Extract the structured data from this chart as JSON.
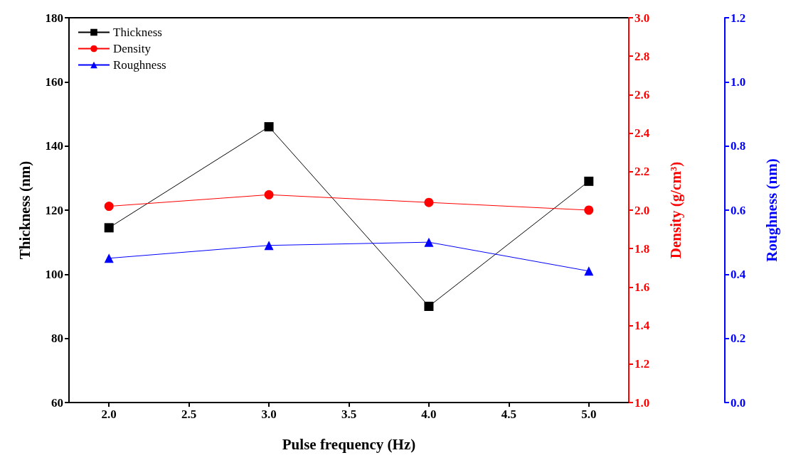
{
  "chart_data": {
    "type": "line",
    "xlabel": "Pulse frequency (Hz)",
    "ylabel": "Thickness (nm)",
    "y2label": "Density (g/cm³)",
    "y3label": "Roughness (nm)",
    "x": [
      2,
      3,
      4,
      5
    ],
    "series": [
      {
        "name": "Thickness",
        "color": "#000000",
        "marker": "square",
        "values": [
          114.5,
          146,
          90,
          129
        ]
      },
      {
        "name": "Density",
        "color": "#ff0000",
        "marker": "circle",
        "axis": "y2",
        "values": [
          2.02,
          2.08,
          2.04,
          2.0
        ]
      },
      {
        "name": "Roughness",
        "color": "#0000ff",
        "marker": "triangle",
        "axis": "y3",
        "values": [
          0.45,
          0.49,
          0.5,
          0.41
        ]
      }
    ],
    "xlim": [
      1.75,
      5.25
    ],
    "xticks": [
      {
        "value": 2,
        "label": "2.0"
      },
      {
        "value": 2.5,
        "label": "2.5"
      },
      {
        "value": 3,
        "label": "3.0"
      },
      {
        "value": 3.5,
        "label": "3.5"
      },
      {
        "value": 4,
        "label": "4.0"
      },
      {
        "value": 4.5,
        "label": "4.5"
      },
      {
        "value": 5,
        "label": "5.0"
      }
    ],
    "ylim": [
      60,
      180
    ],
    "yticks": [
      60,
      80,
      100,
      120,
      140,
      160,
      180
    ],
    "y2lim": [
      1.0,
      3.0
    ],
    "y2ticks": [
      {
        "value": 1.0,
        "label": "1.0"
      },
      1.2,
      1.4,
      1.6,
      1.8,
      {
        "value": 2.0,
        "label": "2.0"
      },
      2.2,
      2.4,
      2.6,
      2.8,
      {
        "value": 3.0,
        "label": "3.0"
      }
    ],
    "y3lim": [
      0.0,
      1.2
    ],
    "y3ticks": [
      {
        "value": 0.0,
        "label": "0.0"
      },
      0.2,
      0.4,
      0.6,
      0.8,
      {
        "value": 1.0,
        "label": "1.0"
      },
      1.2
    ],
    "grid": false,
    "legend": "top left",
    "line_style": "solid"
  }
}
